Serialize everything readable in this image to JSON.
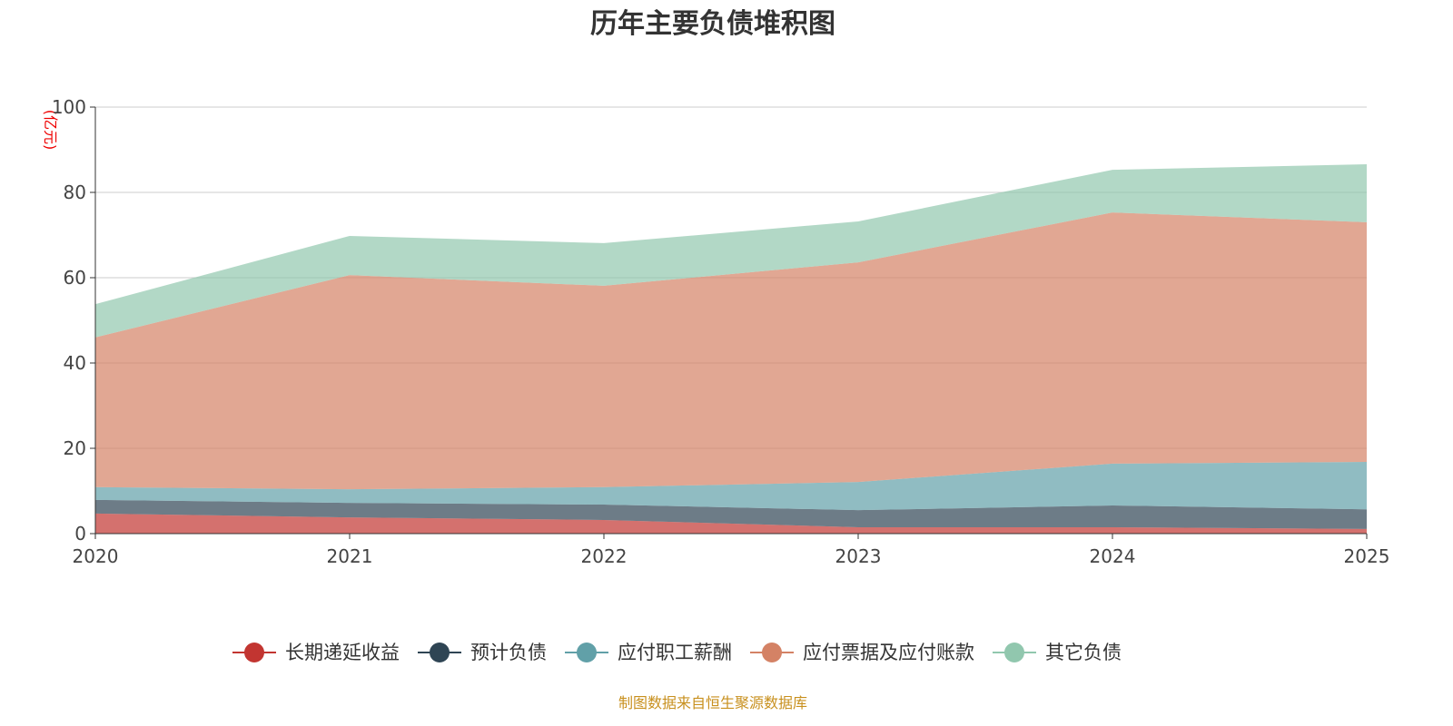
{
  "chart_data": {
    "type": "area",
    "stacked": true,
    "title": "历年主要负债堆积图",
    "ylabel": "(亿元)",
    "ylim": [
      0,
      100
    ],
    "yticks": [
      0,
      20,
      40,
      60,
      80,
      100
    ],
    "categories": [
      "2020",
      "2021",
      "2022",
      "2023",
      "2024",
      "2025"
    ],
    "grid": true,
    "legend_position": "bottom",
    "series": [
      {
        "name": "长期递延收益",
        "color": "#c23531",
        "values": [
          4.7,
          3.8,
          3.2,
          1.5,
          1.5,
          1.1
        ]
      },
      {
        "name": "预计负债",
        "color": "#2f4554",
        "values": [
          3.2,
          3.4,
          3.6,
          4.0,
          5.1,
          4.6
        ]
      },
      {
        "name": "应付职工薪酬",
        "color": "#61a0a8",
        "values": [
          3.0,
          3.2,
          4.1,
          6.6,
          9.8,
          11.1
        ]
      },
      {
        "name": "应付票据及应付账款",
        "color": "#d48265",
        "values": [
          35.1,
          50.2,
          47.2,
          51.5,
          58.9,
          56.2
        ]
      },
      {
        "name": "其它负债",
        "color": "#91c7ae",
        "values": [
          7.8,
          9.2,
          10.0,
          9.6,
          10.0,
          13.6
        ]
      }
    ],
    "source": "制图数据来自恒生聚源数据库"
  }
}
